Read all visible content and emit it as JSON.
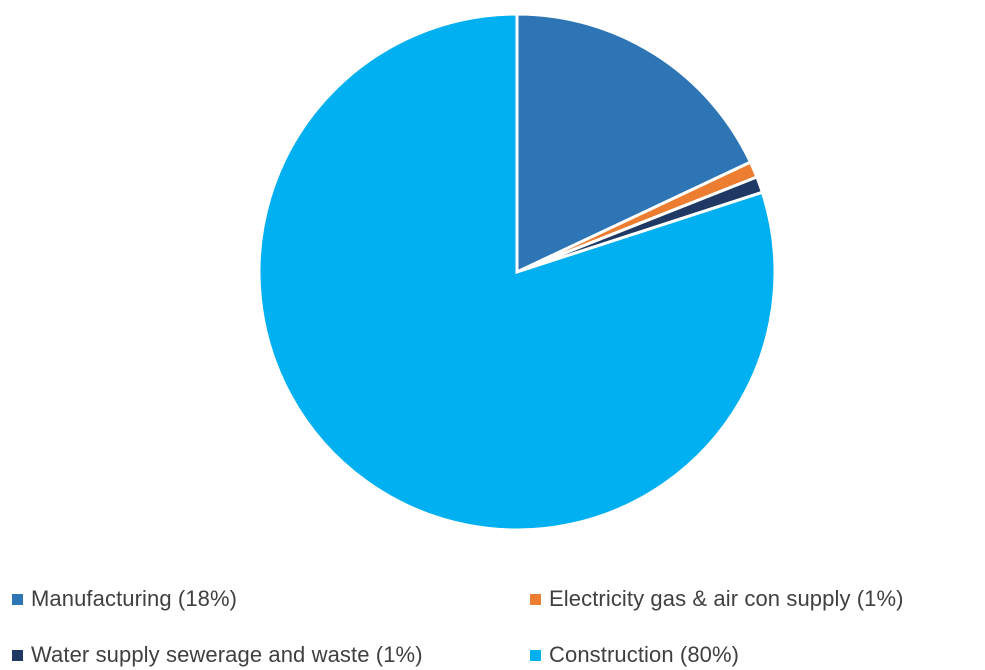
{
  "chart_data": {
    "type": "pie",
    "title": "",
    "start_angle_deg": 0,
    "direction": "clockwise",
    "legend_position": "bottom",
    "slices": [
      {
        "label": "Manufacturing (18%)",
        "value": 18,
        "color": "#2E75B6"
      },
      {
        "label": "Electricity gas & air con supply (1%)",
        "value": 1,
        "color": "#ED7D31"
      },
      {
        "label": "Water supply sewerage and  waste (1%)",
        "value": 1,
        "color": "#1F3864"
      },
      {
        "label": "Construction (80%)",
        "value": 80,
        "color": "#00B0F0"
      }
    ]
  }
}
